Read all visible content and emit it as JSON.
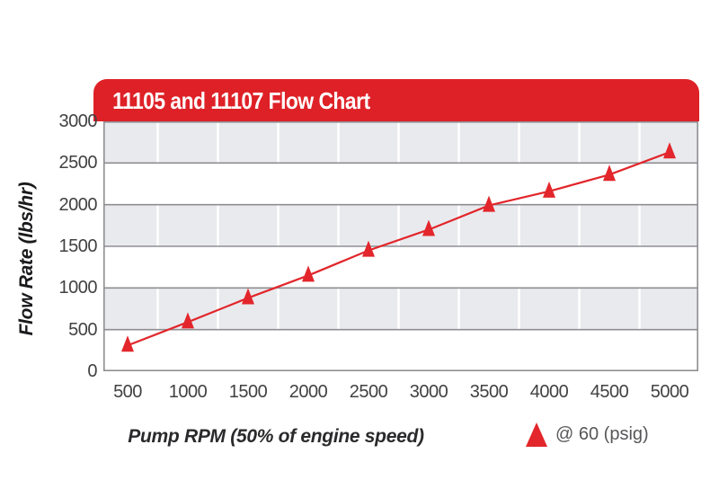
{
  "chart": {
    "title": "11105 and 11107 Flow Chart",
    "y_axis_title": "Flow Rate (lbs/hr)",
    "x_axis_title": "Pump RPM (50% of engine speed)",
    "legend_label": "@ 60 (psig)"
  },
  "chart_data": {
    "type": "line",
    "title": "11105 and 11107 Flow Chart",
    "xlabel": "Pump RPM (50% of engine speed)",
    "ylabel": "Flow Rate (lbs/hr)",
    "x": [
      500,
      1000,
      1500,
      2000,
      2500,
      3000,
      3500,
      4000,
      4500,
      5000
    ],
    "series": [
      {
        "name": "@ 60 (psig)",
        "marker": "triangle",
        "color": "#e2262b",
        "values": [
          310,
          590,
          880,
          1150,
          1450,
          1700,
          1990,
          2160,
          2360,
          2630
        ]
      }
    ],
    "xticks": [
      "500",
      "1000",
      "1500",
      "2000",
      "2500",
      "3000",
      "3500",
      "4000",
      "4500",
      "5000"
    ],
    "yticks": [
      "3000",
      "2500",
      "2000",
      "1500",
      "1000",
      "500",
      "0"
    ],
    "ylim": [
      0,
      3000
    ],
    "grid": "alternating gray/white horizontal bands every 500; white vertical gridlines midway between RPM ticks",
    "legend_position": "bottom-right",
    "legend_entries": [
      "@ 60 (psig)"
    ],
    "colors": {
      "header_red": "#de2127",
      "line_red": "#e2262b",
      "band_gray": "#e9eaee",
      "gridline_gray": "#8f8f93",
      "tick_text": "#414142",
      "legend_text": "#57575a",
      "axis_title_text": "#1a1a1c"
    }
  }
}
